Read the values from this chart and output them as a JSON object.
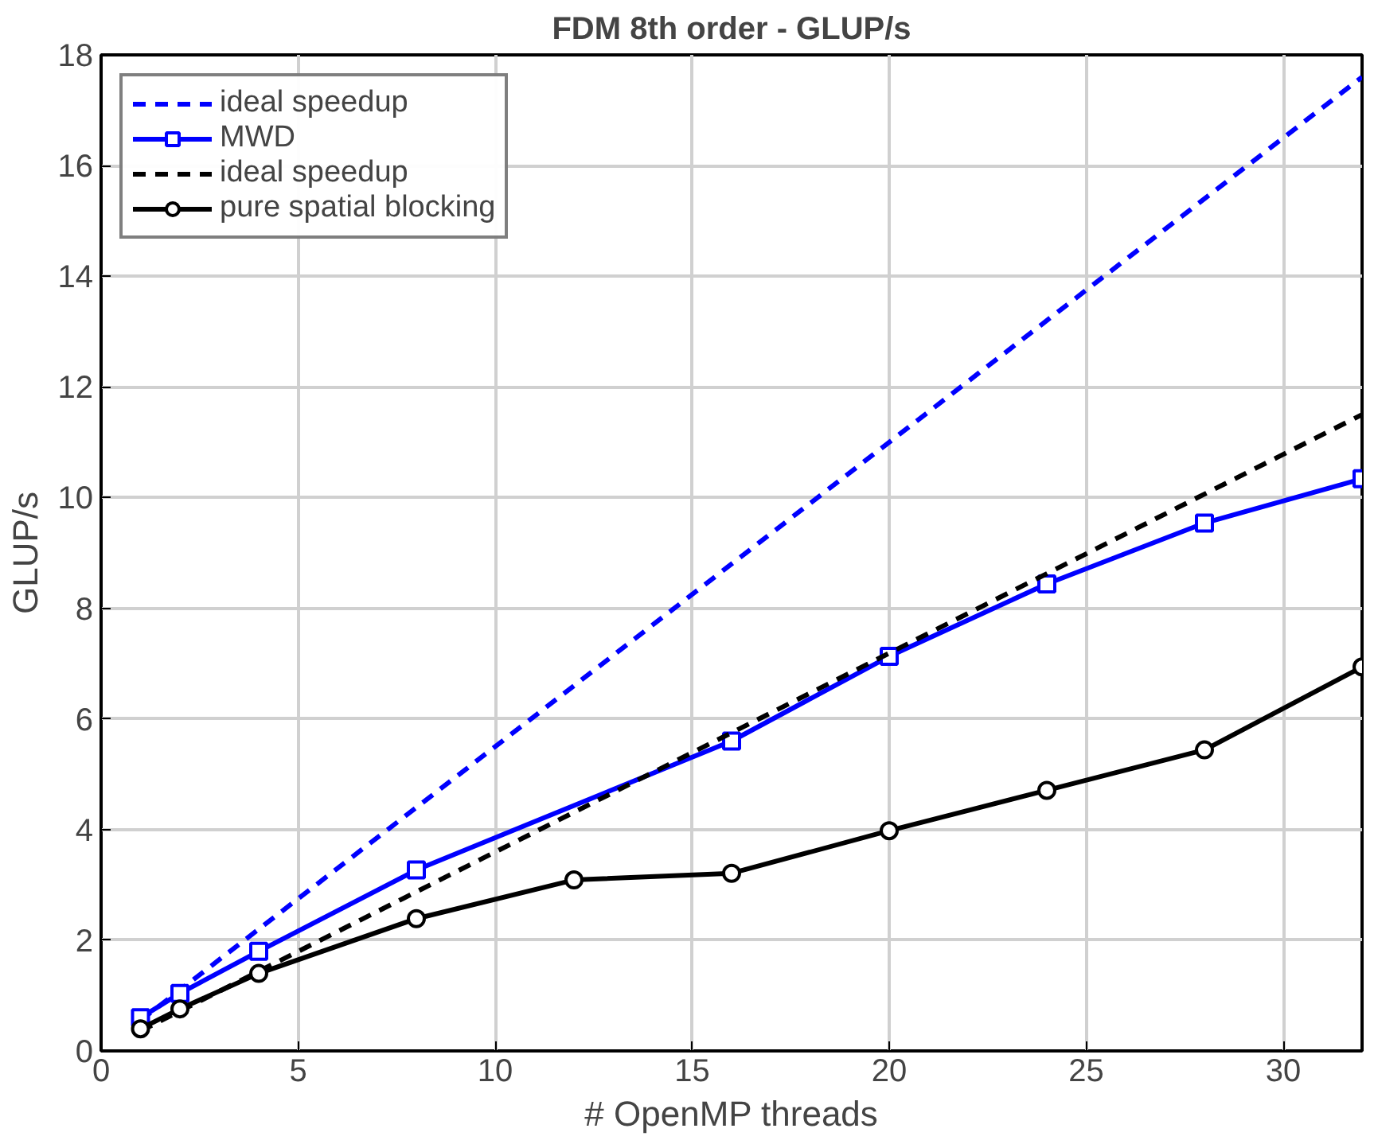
{
  "chart_data": {
    "type": "line",
    "title": "FDM 8th order - GLUP/s",
    "xlabel": "# OpenMP threads",
    "ylabel": "GLUP/s",
    "xlim": [
      0,
      32
    ],
    "ylim": [
      0,
      18
    ],
    "xticks": [
      0,
      5,
      10,
      15,
      20,
      25,
      30
    ],
    "yticks": [
      0,
      2,
      4,
      6,
      8,
      10,
      12,
      14,
      16,
      18
    ],
    "grid": true,
    "legend": "top left",
    "series": [
      {
        "name": "ideal speedup",
        "color": "#0000ff",
        "x": [
          1,
          32
        ],
        "values": [
          0.55,
          17.6
        ],
        "line_style": "dashed",
        "marker": "none"
      },
      {
        "name": "MWD",
        "color": "#0000ff",
        "x": [
          1,
          2,
          4,
          8,
          16,
          20,
          24,
          28,
          32
        ],
        "values": [
          0.6,
          1.04,
          1.8,
          3.27,
          5.6,
          7.13,
          8.44,
          9.54,
          10.34
        ],
        "line_style": "solid",
        "marker": "square"
      },
      {
        "name": "ideal speedup",
        "color": "#000000",
        "x": [
          1,
          32
        ],
        "values": [
          0.36,
          11.5
        ],
        "line_style": "dashed",
        "marker": "none"
      },
      {
        "name": "pure spatial blocking",
        "color": "#000000",
        "x": [
          1,
          2,
          4,
          8,
          12,
          16,
          20,
          24,
          28,
          32
        ],
        "values": [
          0.4,
          0.76,
          1.4,
          2.39,
          3.09,
          3.21,
          3.98,
          4.71,
          5.44,
          6.94
        ],
        "line_style": "solid",
        "marker": "circle"
      }
    ]
  }
}
